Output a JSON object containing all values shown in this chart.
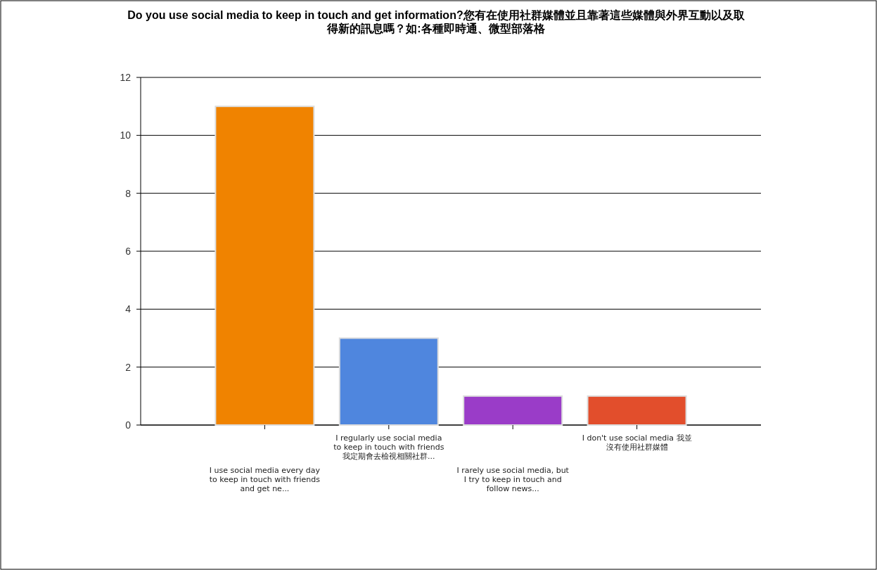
{
  "chart_data": {
    "type": "bar",
    "title": "Do you use social media to keep in touch and get information?您有在使用社群媒體並且靠著這些媒體與外界互動以及取得新的訊息嗎？如:各種即時通、微型部落格",
    "categories": [
      "I use social media every day to keep in touch with friends and get ne...",
      "I regularly use social media to keep in touch with friends我定期會去檢視相關社群...",
      "I rarely use social media, but I try to keep in touch and follow news...",
      "I don't use social media 我並沒有使用社群媒體"
    ],
    "values": [
      11,
      3,
      1,
      1
    ],
    "colors": [
      "#f08300",
      "#4f86de",
      "#9a3cc8",
      "#e24e2c"
    ],
    "ylim": [
      0,
      12
    ],
    "yticks": [
      0,
      2,
      4,
      6,
      8,
      10,
      12
    ],
    "grid": "y"
  }
}
